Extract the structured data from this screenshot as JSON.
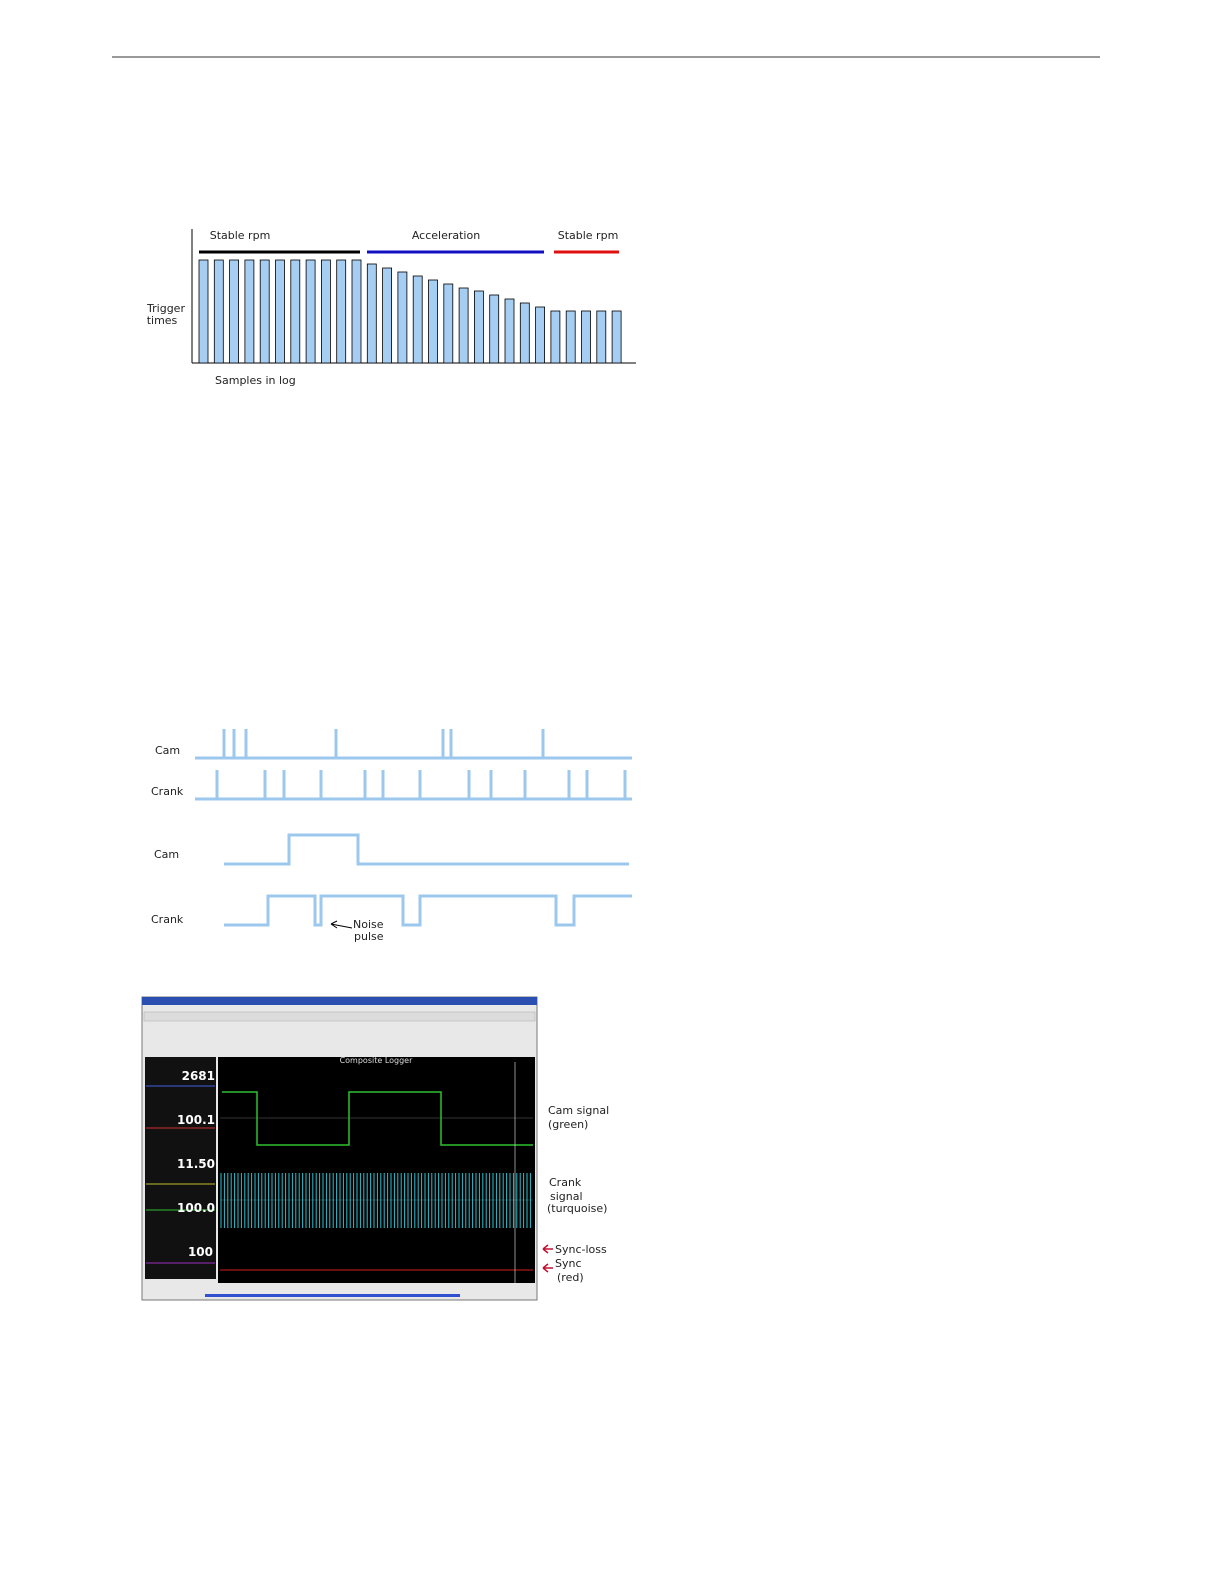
{
  "figure1": {
    "segments": [
      "Stable rpm",
      "Acceleration",
      "Stable rpm"
    ],
    "y_label": [
      "Trigger",
      "times"
    ],
    "x_label": "Samples in log",
    "bars": [
      103,
      103,
      103,
      103,
      103,
      103,
      103,
      103,
      103,
      103,
      103,
      99,
      95,
      91,
      87,
      83,
      79,
      75,
      72,
      68,
      64,
      60,
      56,
      52,
      52,
      52,
      52,
      52
    ]
  },
  "figure2": {
    "labels": [
      "Cam",
      "Crank",
      "Cam",
      "Crank"
    ],
    "annotation": [
      "Noise",
      "pulse"
    ]
  },
  "figure3": {
    "plot_title": "Composite Logger",
    "gauges": [
      "2681",
      "100.1",
      "11.50",
      "100.0",
      "100"
    ],
    "callouts": {
      "cam": [
        "Cam signal",
        "(green)"
      ],
      "crank": [
        "Crank",
        "signal",
        "(turquoise)"
      ],
      "sync_loss": "Sync-loss",
      "sync": [
        "Sync",
        "(red)"
      ]
    }
  }
}
